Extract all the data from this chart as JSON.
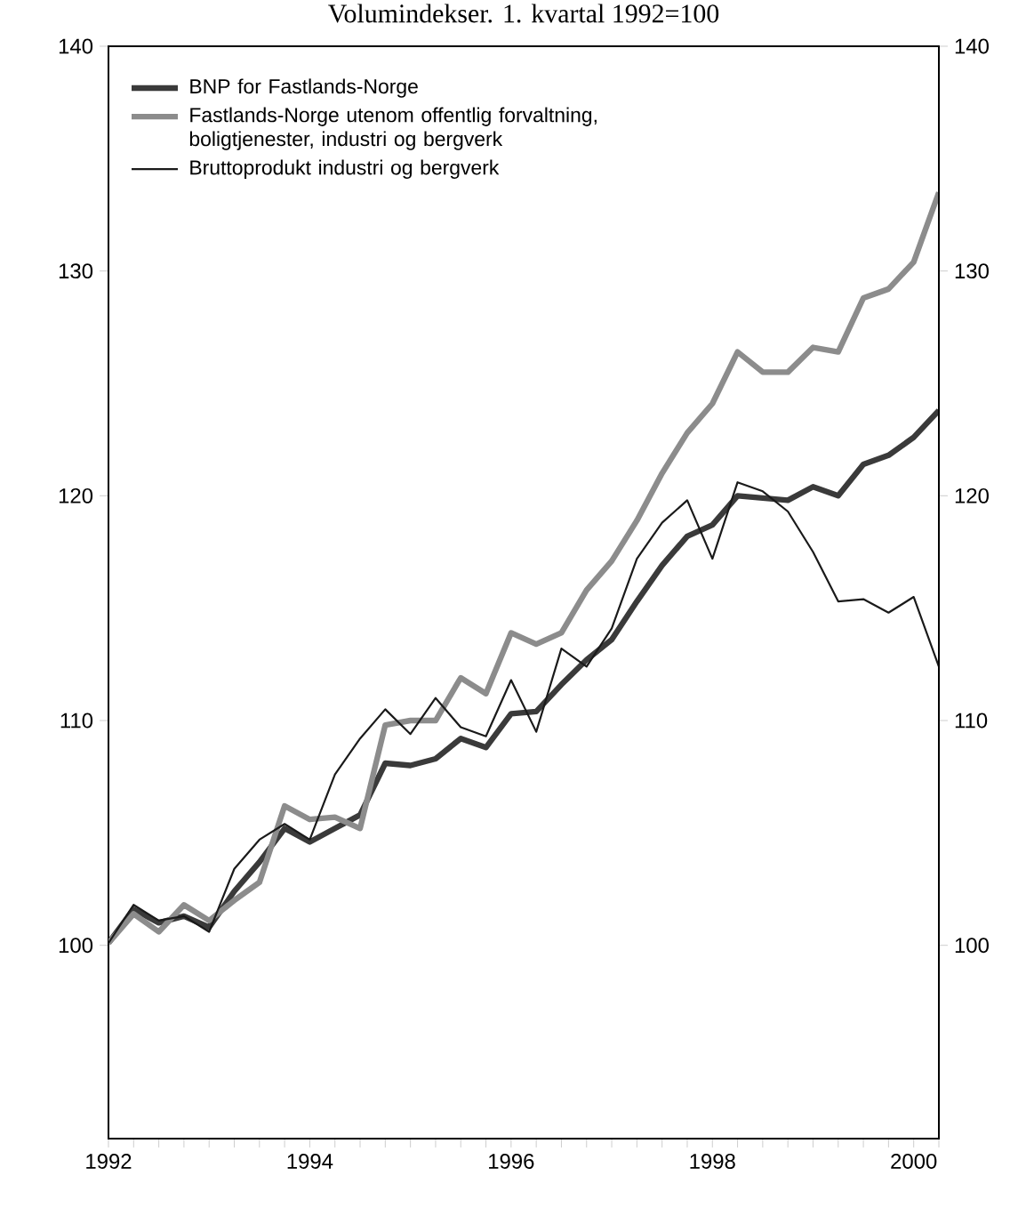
{
  "chart_data": {
    "type": "line",
    "title": "Volumindekser. 1. kvartal 1992=100",
    "x": [
      1992,
      1992.25,
      1992.5,
      1992.75,
      1993,
      1993.25,
      1993.5,
      1993.75,
      1994,
      1994.25,
      1994.5,
      1994.75,
      1995,
      1995.25,
      1995.5,
      1995.75,
      1996,
      1996.25,
      1996.5,
      1996.75,
      1997,
      1997.25,
      1997.5,
      1997.75,
      1998,
      1998.25,
      1998.5,
      1998.75,
      1999,
      1999.25,
      1999.5,
      1999.75,
      2000,
      2000.25
    ],
    "series": [
      {
        "name": "BNP for Fastlands-Norge",
        "color": "#3a3a3a",
        "values": [
          100.1,
          101.6,
          101.0,
          101.3,
          100.8,
          102.4,
          103.7,
          105.2,
          104.6,
          105.2,
          105.8,
          108.1,
          108.0,
          108.3,
          109.2,
          108.8,
          110.3,
          110.4,
          111.6,
          112.7,
          113.6,
          115.3,
          116.9,
          118.2,
          118.7,
          120.0,
          119.9,
          119.8,
          120.4,
          120.0,
          121.4,
          121.8,
          122.6,
          123.8
        ]
      },
      {
        "name": "Fastlands-Norge utenom offentlig forvaltning, boligtjenester, industri og bergverk",
        "color": "#8c8c8c",
        "values": [
          100.1,
          101.4,
          100.6,
          101.8,
          101.1,
          102.0,
          102.8,
          106.2,
          105.6,
          105.7,
          105.2,
          109.8,
          110.0,
          110.0,
          111.9,
          111.2,
          113.9,
          113.4,
          113.9,
          115.8,
          117.1,
          118.9,
          121.0,
          122.8,
          124.1,
          126.4,
          125.5,
          125.5,
          126.6,
          126.4,
          128.8,
          129.2,
          130.4,
          133.5
        ]
      },
      {
        "name": "Bruttoprodukt industri og bergverk",
        "color": "#1a1a1a",
        "values": [
          100.1,
          101.8,
          101.1,
          101.3,
          100.6,
          103.4,
          104.7,
          105.4,
          104.7,
          107.6,
          109.2,
          110.5,
          109.4,
          111.0,
          109.7,
          109.3,
          111.8,
          109.5,
          113.2,
          112.4,
          114.1,
          117.2,
          118.8,
          119.8,
          117.2,
          120.6,
          120.2,
          119.3,
          117.5,
          115.3,
          115.4,
          114.8,
          115.5,
          112.4
        ]
      }
    ],
    "xlim": [
      1992,
      2000.25
    ],
    "xticks": [
      1992,
      {
        "value": 1992.25,
        "label": null
      },
      {
        "value": 1992.5,
        "label": null
      },
      {
        "value": 1992.75,
        "label": null
      },
      {
        "value": 1993,
        "label": null
      },
      {
        "value": 1993.25,
        "label": null
      },
      {
        "value": 1993.5,
        "label": null
      },
      {
        "value": 1993.75,
        "label": null
      },
      1994,
      {
        "value": 1994.25,
        "label": null
      },
      {
        "value": 1994.5,
        "label": null
      },
      {
        "value": 1994.75,
        "label": null
      },
      {
        "value": 1995,
        "label": null
      },
      {
        "value": 1995.25,
        "label": null
      },
      {
        "value": 1995.5,
        "label": null
      },
      {
        "value": 1995.75,
        "label": null
      },
      1996,
      {
        "value": 1996.25,
        "label": null
      },
      {
        "value": 1996.5,
        "label": null
      },
      {
        "value": 1996.75,
        "label": null
      },
      {
        "value": 1997,
        "label": null
      },
      {
        "value": 1997.25,
        "label": null
      },
      {
        "value": 1997.5,
        "label": null
      },
      {
        "value": 1997.75,
        "label": null
      },
      1998,
      {
        "value": 1998.25,
        "label": null
      },
      {
        "value": 1998.5,
        "label": null
      },
      {
        "value": 1998.75,
        "label": null
      },
      {
        "value": 1999,
        "label": null
      },
      {
        "value": 1999.25,
        "label": null
      },
      {
        "value": 1999.5,
        "label": null
      },
      {
        "value": 1999.75,
        "label": null
      },
      2000,
      {
        "value": 2000.25,
        "label": null
      }
    ],
    "ylim": [
      91.4,
      140
    ],
    "yticks": [
      100,
      110,
      120,
      130,
      140
    ],
    "y2lim": [
      91.4,
      140
    ],
    "y2ticks": [
      100,
      110,
      120,
      130,
      140
    ],
    "legend": "top left",
    "grid": false,
    "marker": "none",
    "line_style": "solid"
  }
}
